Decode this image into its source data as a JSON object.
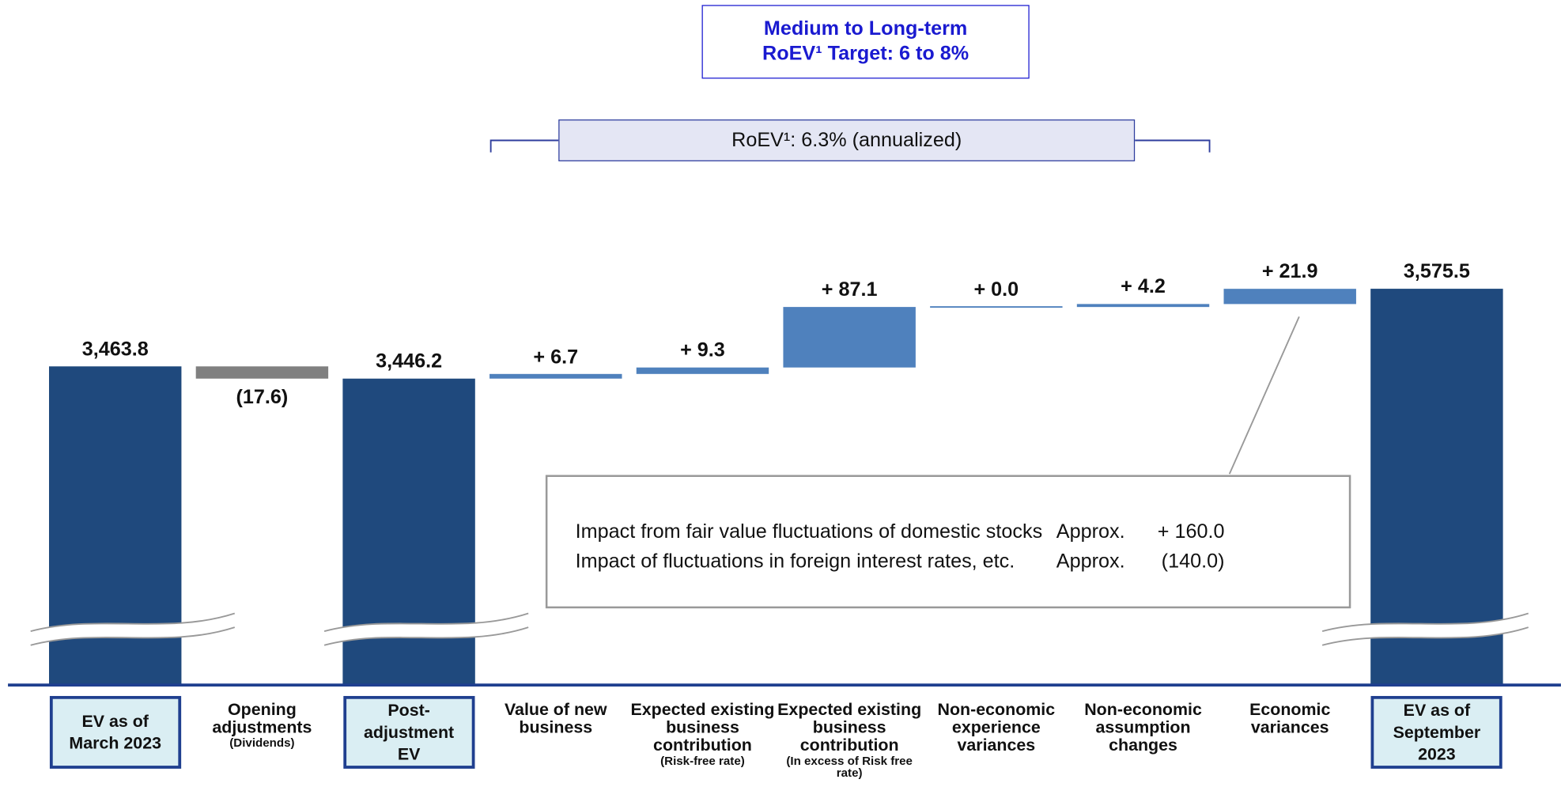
{
  "chart_data": {
    "type": "waterfall",
    "title": "Medium to Long-term RoEV¹ Target: 6 to 8%",
    "subtitle": "RoEV¹: 6.3% (annualized)",
    "categories": [
      "EV as of March 2023",
      "Opening adjustments",
      "Post-adjustment EV",
      "Value of new business",
      "Expected existing business contribution",
      "Expected existing business contribution",
      "Non-economic experience variances",
      "Non-economic assumption changes",
      "Economic variances",
      "EV as of September 2023"
    ],
    "category_notes": [
      null,
      "(Dividends)",
      null,
      null,
      "(Risk-free rate)",
      "(In excess of Risk free rate)",
      null,
      null,
      null,
      null
    ],
    "values": [
      3463.8,
      -17.6,
      3446.2,
      6.7,
      9.3,
      87.1,
      0.0,
      4.2,
      21.9,
      3575.5
    ],
    "value_labels": [
      "3,463.8",
      "(17.6)",
      "3,446.2",
      "+ 6.7",
      "+ 9.3",
      "+ 87.1",
      "+ 0.0",
      "+ 4.2",
      "+ 21.9",
      "3,575.5"
    ],
    "is_total": [
      true,
      false,
      true,
      false,
      false,
      false,
      false,
      false,
      false,
      true
    ],
    "colors": {
      "total": "#1f497d",
      "increase": "#4f81bd",
      "decrease": "#808080"
    },
    "ylim": [
      3350,
      3600
    ],
    "axis_break": true,
    "annotation": {
      "rows": [
        [
          "Impact from fair value fluctuations of domestic stocks",
          "Approx.",
          "+ 160.0"
        ],
        [
          "Impact of fluctuations in foreign interest rates, etc.",
          "Approx.",
          "(140.0)"
        ]
      ]
    }
  }
}
